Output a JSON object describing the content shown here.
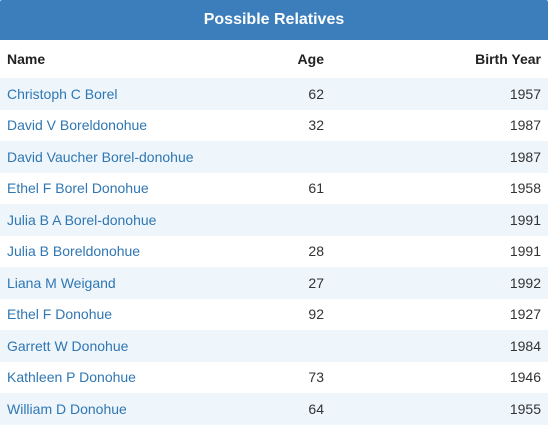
{
  "header": {
    "title": "Possible Relatives"
  },
  "table": {
    "columns": {
      "name": "Name",
      "age": "Age",
      "birth_year": "Birth Year"
    },
    "rows": [
      {
        "name": "Christoph C Borel",
        "age": "62",
        "birth_year": "1957"
      },
      {
        "name": "David V Boreldonohue",
        "age": "32",
        "birth_year": "1987"
      },
      {
        "name": "David Vaucher Borel-donohue",
        "age": "",
        "birth_year": "1987"
      },
      {
        "name": "Ethel F Borel Donohue",
        "age": "61",
        "birth_year": "1958"
      },
      {
        "name": "Julia B A Borel-donohue",
        "age": "",
        "birth_year": "1991"
      },
      {
        "name": "Julia B Boreldonohue",
        "age": "28",
        "birth_year": "1991"
      },
      {
        "name": "Liana M Weigand",
        "age": "27",
        "birth_year": "1992"
      },
      {
        "name": "Ethel F Donohue",
        "age": "92",
        "birth_year": "1927"
      },
      {
        "name": "Garrett W Donohue",
        "age": "",
        "birth_year": "1984"
      },
      {
        "name": "Kathleen P Donohue",
        "age": "73",
        "birth_year": "1946"
      },
      {
        "name": "William D Donohue",
        "age": "64",
        "birth_year": "1955"
      }
    ]
  },
  "colors": {
    "header_bg": "#3c7ebc",
    "link": "#2f77b3",
    "stripe": "#eef5fb"
  }
}
